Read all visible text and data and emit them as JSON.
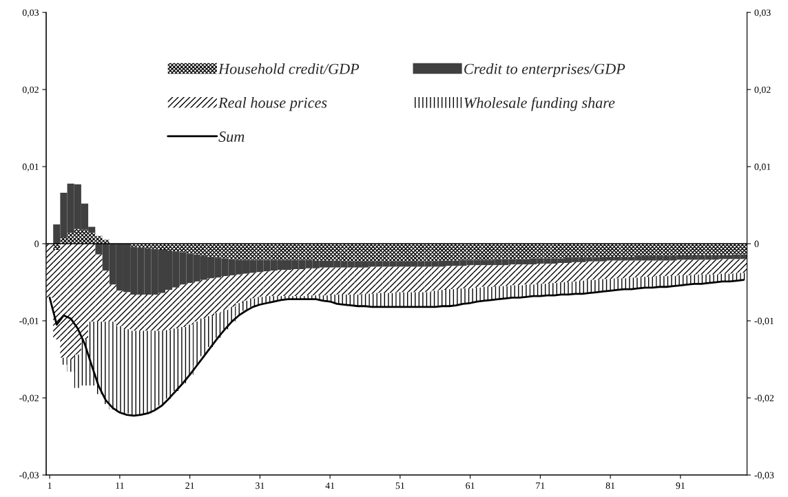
{
  "chart_data": {
    "type": "bar",
    "stacked": true,
    "categories": [
      "1",
      null,
      null,
      null,
      null,
      null,
      null,
      null,
      null,
      null,
      "11",
      null,
      null,
      null,
      null,
      null,
      null,
      null,
      null,
      null,
      "21",
      null,
      null,
      null,
      null,
      null,
      null,
      null,
      null,
      null,
      "31",
      null,
      null,
      null,
      null,
      null,
      null,
      null,
      null,
      null,
      "41",
      null,
      null,
      null,
      null,
      null,
      null,
      null,
      null,
      null,
      "51",
      null,
      null,
      null,
      null,
      null,
      null,
      null,
      null,
      null,
      "61",
      null,
      null,
      null,
      null,
      null,
      null,
      null,
      null,
      null,
      "71",
      null,
      null,
      null,
      null,
      null,
      null,
      null,
      null,
      null,
      "81",
      null,
      null,
      null,
      null,
      null,
      null,
      null,
      null,
      null,
      "91",
      null,
      null,
      null,
      null,
      null,
      null,
      null,
      null,
      null
    ],
    "ylim": [
      -0.03,
      0.03
    ],
    "yticks": [
      {
        "value": -0.03,
        "label": "-0,03"
      },
      {
        "value": -0.02,
        "label": "-0,02"
      },
      {
        "value": -0.01,
        "label": "-0,01"
      },
      0,
      {
        "value": 0.01,
        "label": "0,01"
      },
      {
        "value": 0.02,
        "label": "0,02"
      },
      {
        "value": 0.03,
        "label": "0,03"
      }
    ],
    "y2lim": [
      -0.03,
      0.03
    ],
    "y2ticks": [
      {
        "value": -0.03,
        "label": "-0,03"
      },
      {
        "value": -0.02,
        "label": "-0,02"
      },
      {
        "value": -0.01,
        "label": "-0,01"
      },
      0,
      {
        "value": 0.01,
        "label": "0,01"
      },
      {
        "value": 0.02,
        "label": "0,02"
      },
      {
        "value": 0.03,
        "label": "0,03"
      }
    ],
    "ref_lines": [
      {
        "axis": "y",
        "value": 0,
        "color": "#000000"
      }
    ],
    "grid": false,
    "legend": "top",
    "series": [
      {
        "name": "Household credit/GDP",
        "color": "#000000",
        "values": [
          0,
          -0.0008,
          0.0008,
          0.0014,
          0.0019,
          0.0018,
          0.0014,
          0.001,
          0.0005,
          null,
          null,
          null,
          -0.0004,
          -0.0005,
          -0.0006,
          -0.0007,
          -0.0008,
          -0.0009,
          -0.001,
          -0.0011,
          -0.0013,
          -0.0014,
          -0.0016,
          -0.0017,
          -0.0018,
          -0.0019,
          -0.002,
          -0.0021,
          -0.0021,
          -0.0021,
          -0.0021,
          -0.0021,
          -0.0021,
          -0.0021,
          -0.0021,
          -0.0021,
          -0.0021,
          -0.0021,
          -0.0022,
          -0.0022,
          -0.0022,
          -0.0022,
          -0.0023,
          -0.0023,
          -0.0023,
          -0.0023,
          -0.0023,
          -0.0023,
          -0.0023,
          -0.0023,
          -0.0023,
          -0.0023,
          -0.0023,
          -0.0023,
          -0.0023,
          -0.0023,
          -0.0022,
          -0.0022,
          -0.0022,
          -0.0021,
          -0.0021,
          -0.0021,
          -0.0021,
          -0.0021,
          -0.002,
          -0.002,
          -0.002,
          -0.002,
          -0.002,
          -0.0019,
          -0.0019,
          -0.0019,
          -0.0019,
          -0.0019,
          -0.0018,
          -0.0018,
          -0.0018,
          -0.0018,
          -0.0018,
          -0.0017,
          -0.0017,
          -0.0017,
          -0.0017,
          -0.0017,
          -0.0016,
          -0.0016,
          -0.0016,
          -0.0016,
          -0.0016,
          -0.0016,
          -0.0015,
          -0.0015,
          -0.0015,
          -0.0015,
          -0.0015,
          -0.0015,
          -0.0015,
          -0.0015,
          -0.0014,
          -0.0014
        ]
      },
      {
        "name": "Credit to enterprises/GDP",
        "color": "#404040",
        "values": [
          0,
          0.0025,
          0.0058,
          0.0064,
          0.0058,
          0.0034,
          0.0008,
          -0.0014,
          -0.0035,
          -0.0053,
          -0.0061,
          -0.0063,
          -0.0062,
          -0.0061,
          -0.006,
          -0.0059,
          -0.0056,
          -0.0051,
          -0.0047,
          -0.0042,
          -0.0038,
          -0.0035,
          -0.0031,
          -0.0028,
          -0.0026,
          -0.0023,
          -0.0021,
          -0.0019,
          -0.0018,
          -0.0017,
          -0.0016,
          -0.0015,
          -0.0014,
          -0.0013,
          -0.0013,
          -0.0012,
          -0.0012,
          -0.0011,
          -0.001,
          -0.0009,
          -0.0009,
          -0.0009,
          -0.0008,
          -0.0008,
          -0.0008,
          -0.0008,
          -0.0007,
          -0.0007,
          -0.0007,
          -0.0007,
          -0.0007,
          -0.0007,
          -0.0007,
          -0.0007,
          -0.0007,
          -0.0007,
          -0.0008,
          -0.0007,
          -0.0007,
          -0.0008,
          -0.0007,
          -0.0007,
          -0.0007,
          -0.0007,
          -0.0008,
          -0.0008,
          -0.0007,
          -0.0007,
          -0.0007,
          -0.0008,
          -0.0007,
          -0.0007,
          -0.0007,
          -0.0006,
          -0.0007,
          -0.0006,
          -0.0006,
          -0.0005,
          -0.0005,
          -0.0006,
          -0.0005,
          -0.0005,
          -0.0005,
          -0.0005,
          -0.0006,
          -0.0006,
          -0.0006,
          -0.0006,
          -0.0006,
          -0.0006,
          -0.0006,
          -0.0006,
          -0.0006,
          -0.0006,
          -0.0006,
          -0.0006,
          -0.0005,
          -0.0005,
          -0.0006,
          -0.0006
        ]
      },
      {
        "name": "Real house prices",
        "color": "#000000",
        "values": [
          -0.007,
          -0.0116,
          -0.0148,
          -0.015,
          -0.0144,
          -0.0124,
          -0.0101,
          -0.0087,
          -0.0066,
          -0.0048,
          -0.0046,
          -0.0048,
          -0.0047,
          -0.0047,
          -0.0047,
          -0.0047,
          -0.0049,
          -0.0052,
          -0.0053,
          -0.0055,
          -0.0054,
          -0.0052,
          -0.005,
          -0.0049,
          -0.0046,
          -0.0044,
          -0.0041,
          -0.0037,
          -0.0035,
          -0.0033,
          -0.0032,
          -0.0032,
          -0.0033,
          -0.0034,
          -0.0034,
          -0.0035,
          -0.0035,
          -0.0035,
          -0.0035,
          -0.0036,
          -0.0036,
          -0.0035,
          -0.0035,
          -0.0035,
          -0.0035,
          -0.0034,
          -0.0035,
          -0.0034,
          -0.0034,
          -0.0034,
          -0.0033,
          -0.0033,
          -0.0033,
          -0.0033,
          -0.0033,
          -0.0031,
          -0.003,
          -0.003,
          -0.003,
          -0.0029,
          -0.003,
          -0.0029,
          -0.0028,
          -0.0028,
          -0.0027,
          -0.0027,
          -0.0027,
          -0.0027,
          -0.0026,
          -0.0026,
          -0.0026,
          -0.0026,
          -0.0025,
          -0.0025,
          -0.0025,
          -0.0025,
          -0.0024,
          -0.0024,
          -0.0024,
          -0.0023,
          -0.0024,
          -0.0023,
          -0.0023,
          -0.0022,
          -0.0022,
          -0.0021,
          -0.0021,
          -0.002,
          -0.002,
          -0.002,
          -0.002,
          -0.002,
          -0.0019,
          -0.0019,
          -0.0019,
          -0.0019,
          -0.0019,
          -0.0019,
          -0.0018,
          -0.0018
        ]
      },
      {
        "name": "Wholesale funding share",
        "color": "#000000",
        "values": [
          0,
          0,
          -0.0009,
          -0.0016,
          -0.0043,
          -0.006,
          -0.0083,
          -0.0094,
          -0.0107,
          -0.0114,
          -0.0111,
          -0.0109,
          -0.011,
          -0.0109,
          -0.0107,
          -0.0103,
          -0.0097,
          -0.0089,
          -0.0081,
          -0.0073,
          -0.0065,
          -0.0057,
          -0.0049,
          -0.004,
          -0.0032,
          -0.0025,
          -0.0019,
          -0.0016,
          -0.0013,
          -0.0011,
          -0.001,
          -0.0009,
          -0.0007,
          -0.0005,
          -0.0004,
          -0.0004,
          -0.0004,
          -0.0005,
          -0.0005,
          -0.0007,
          -0.0008,
          -0.0012,
          -0.0013,
          -0.0014,
          -0.0015,
          -0.0016,
          -0.0017,
          -0.0018,
          -0.0018,
          -0.0018,
          -0.0019,
          -0.0019,
          -0.0019,
          -0.0019,
          -0.0019,
          -0.0021,
          -0.0021,
          -0.0022,
          -0.0021,
          -0.002,
          -0.0019,
          -0.0018,
          -0.0018,
          -0.0017,
          -0.0017,
          -0.0016,
          -0.0016,
          -0.0016,
          -0.0016,
          -0.0015,
          -0.0016,
          -0.0015,
          -0.0016,
          -0.0016,
          -0.0016,
          -0.0016,
          -0.0017,
          -0.0017,
          -0.0016,
          -0.0016,
          -0.0015,
          -0.0015,
          -0.0014,
          -0.0015,
          -0.0014,
          -0.0014,
          -0.0014,
          -0.0014,
          -0.0014,
          -0.0013,
          -0.0013,
          -0.0012,
          -0.0012,
          -0.0012,
          -0.0011,
          -0.001,
          -0.001,
          -0.001,
          -0.001,
          -0.0009
        ]
      },
      {
        "name": "Sum",
        "type": "line",
        "color": "#000000",
        "line_style": "solid",
        "values": [
          -0.007,
          -0.0105,
          -0.0093,
          -0.0097,
          -0.011,
          -0.013,
          -0.0158,
          -0.0185,
          -0.0203,
          -0.0213,
          -0.0219,
          -0.0222,
          -0.0223,
          -0.0222,
          -0.022,
          -0.0216,
          -0.021,
          -0.0201,
          -0.0191,
          -0.0181,
          -0.017,
          -0.0158,
          -0.0146,
          -0.0134,
          -0.0122,
          -0.0111,
          -0.0101,
          -0.0093,
          -0.0087,
          -0.0082,
          -0.0079,
          -0.0077,
          -0.0075,
          -0.0073,
          -0.0072,
          -0.0072,
          -0.0072,
          -0.0072,
          -0.0072,
          -0.0074,
          -0.0075,
          -0.0078,
          -0.0079,
          -0.008,
          -0.0081,
          -0.0081,
          -0.0082,
          -0.0082,
          -0.0082,
          -0.0082,
          -0.0082,
          -0.0082,
          -0.0082,
          -0.0082,
          -0.0082,
          -0.0082,
          -0.0081,
          -0.0081,
          -0.008,
          -0.0078,
          -0.0077,
          -0.0075,
          -0.0074,
          -0.0073,
          -0.0072,
          -0.0071,
          -0.007,
          -0.007,
          -0.0069,
          -0.0068,
          -0.0068,
          -0.0067,
          -0.0067,
          -0.0066,
          -0.0066,
          -0.0065,
          -0.0065,
          -0.0064,
          -0.0063,
          -0.0062,
          -0.0061,
          -0.006,
          -0.0059,
          -0.0059,
          -0.0058,
          -0.0057,
          -0.0057,
          -0.0056,
          -0.0056,
          -0.0055,
          -0.0054,
          -0.0053,
          -0.0052,
          -0.0052,
          -0.0051,
          -0.005,
          -0.0049,
          -0.0049,
          -0.0048,
          -0.0047
        ]
      }
    ]
  }
}
